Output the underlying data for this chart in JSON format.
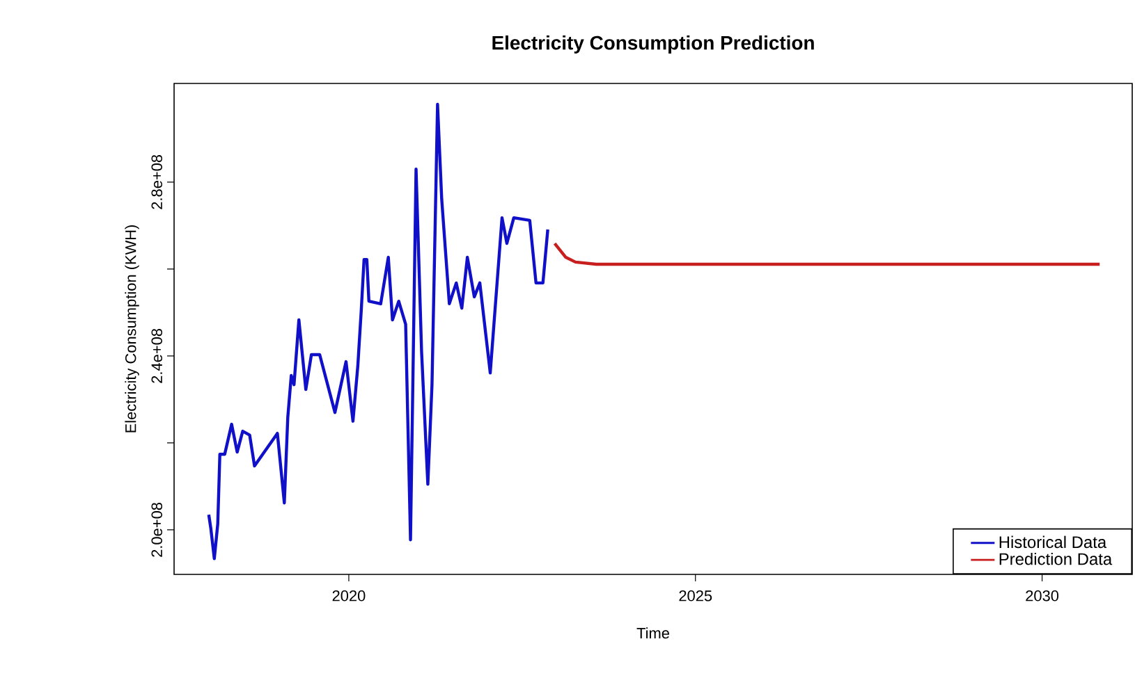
{
  "chart_data": {
    "type": "line",
    "title": "Electricity Consumption Prediction",
    "xlabel": "Time",
    "ylabel": "Electricity Consumption (KWH)",
    "xlim": [
      2017.48,
      2031.3
    ],
    "ylim": [
      189760000.0,
      302700000.0
    ],
    "xticks": [
      2020,
      2025,
      2030
    ],
    "yticks": [
      {
        "value": 200000000.0,
        "label": "2.0e+08"
      },
      {
        "value": 220000000.0,
        "label": null
      },
      {
        "value": 240000000.0,
        "label": "2.4e+08"
      },
      {
        "value": 260000000.0,
        "label": null
      },
      {
        "value": 280000000.0,
        "label": "2.8e+08"
      }
    ],
    "legend": "bottom right",
    "series": [
      {
        "name": "Historical Data",
        "color": "#1010c8",
        "x": [
          2017.98,
          2018.01,
          2018.06,
          2018.11,
          2018.14,
          2018.21,
          2018.31,
          2018.39,
          2018.47,
          2018.57,
          2018.64,
          2018.97,
          2019.07,
          2019.12,
          2019.17,
          2019.21,
          2019.28,
          2019.38,
          2019.46,
          2019.58,
          2019.8,
          2019.96,
          2020.06,
          2020.13,
          2020.18,
          2020.22,
          2020.26,
          2020.29,
          2020.46,
          2020.57,
          2020.63,
          2020.72,
          2020.82,
          2020.89,
          2020.97,
          2021.05,
          2021.14,
          2021.2,
          2021.28,
          2021.34,
          2021.45,
          2021.55,
          2021.63,
          2021.71,
          2021.81,
          2021.89,
          2022.04,
          2022.21,
          2022.28,
          2022.38,
          2022.61,
          2022.7,
          2022.8,
          2022.87
        ],
        "values": [
          203500000.0,
          200300000.0,
          193400000.0,
          201400000.0,
          217400000.0,
          217400000.0,
          224300000.0,
          217900000.0,
          222700000.0,
          221800000.0,
          214700000.0,
          222200000.0,
          206200000.0,
          225900000.0,
          235500000.0,
          233400000.0,
          248300000.0,
          232300000.0,
          240300000.0,
          240300000.0,
          227000000.0,
          238700000.0,
          225000000.0,
          237700000.0,
          250600000.0,
          262200000.0,
          262200000.0,
          252600000.0,
          252000000.0,
          262700000.0,
          248300000.0,
          252600000.0,
          247300000.0,
          197700000.0,
          283000000.0,
          240900000.0,
          210500000.0,
          233400000.0,
          297900000.0,
          276100000.0,
          252000000.0,
          256800000.0,
          251000000.0,
          262700000.0,
          253600000.0,
          256800000.0,
          236100000.0,
          271800000.0,
          265900000.0,
          271800000.0,
          271200000.0,
          256800000.0,
          256800000.0,
          269100000.0
        ]
      },
      {
        "name": "Prediction Data",
        "color": "#c81e1e",
        "x": [
          2022.97,
          2023.13,
          2023.27,
          2023.57,
          2030.83
        ],
        "values": [
          265900000.0,
          262700000.0,
          261600000.0,
          261100000.0,
          261100000.0
        ]
      }
    ]
  }
}
